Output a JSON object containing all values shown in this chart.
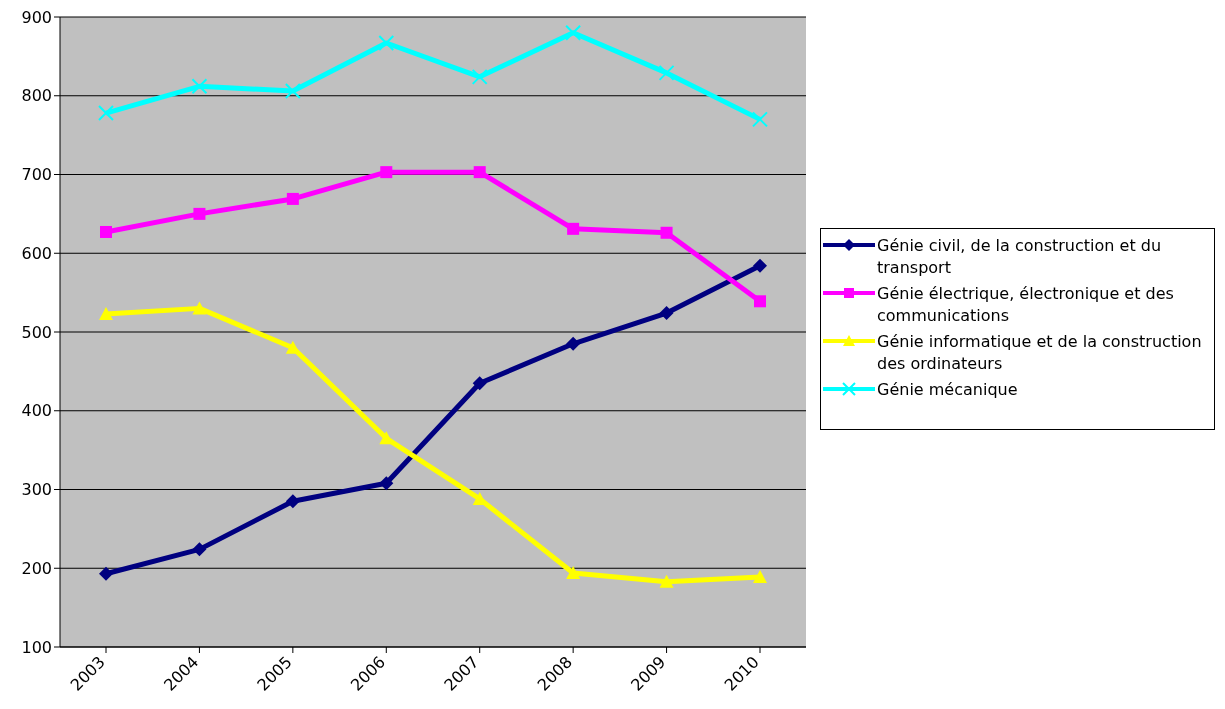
{
  "chart_data": {
    "type": "line",
    "categories": [
      "2003",
      "2004",
      "2005",
      "2006",
      "2007",
      "2008",
      "2009",
      "2010"
    ],
    "series": [
      {
        "name": "Génie civil, de la construction et du transport",
        "color": "#000080",
        "marker": "diamond",
        "values": [
          193,
          224,
          285,
          308,
          435,
          485,
          524,
          584
        ]
      },
      {
        "name": "Génie électrique, électronique et des communications",
        "color": "#ff00ff",
        "marker": "square",
        "values": [
          627,
          650,
          669,
          703,
          703,
          631,
          626,
          539
        ]
      },
      {
        "name": "Génie informatique et de la construction des ordinateurs",
        "color": "#ffff00",
        "marker": "triangle",
        "values": [
          523,
          530,
          480,
          365,
          288,
          194,
          183,
          189
        ]
      },
      {
        "name": "Génie mécanique",
        "color": "#00ffff",
        "marker": "cross",
        "values": [
          778,
          812,
          806,
          867,
          824,
          880,
          829,
          770
        ]
      }
    ],
    "ylim": [
      100,
      900
    ],
    "yticks": [
      100,
      200,
      300,
      400,
      500,
      600,
      700,
      800,
      900
    ],
    "grid": "y",
    "legend": "right"
  }
}
